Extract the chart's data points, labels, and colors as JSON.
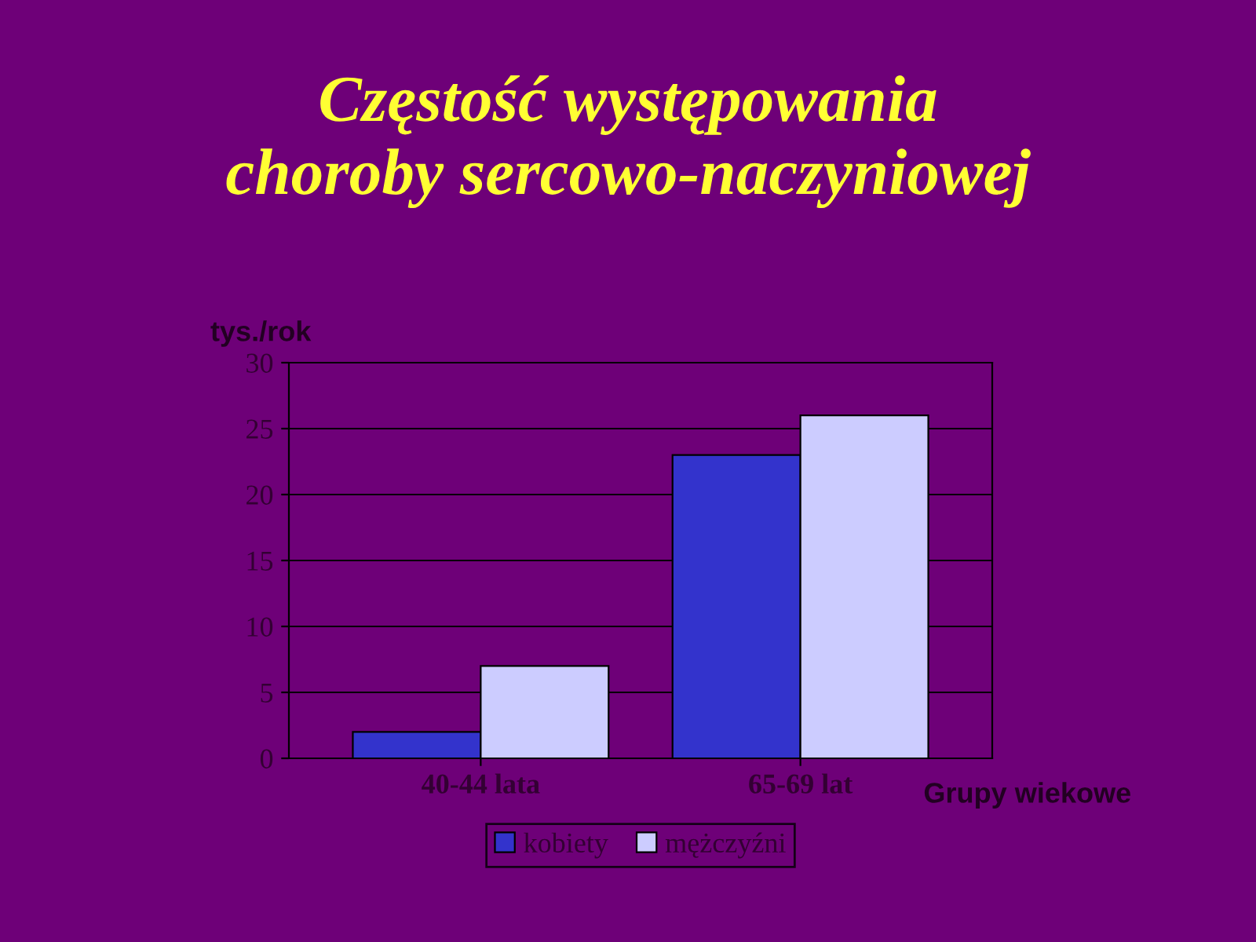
{
  "chart_data": {
    "type": "bar",
    "title": "Częstość występowania\nchoroby sercowo-naczyniowej",
    "ylabel": "tys./rok",
    "xlabel": "Grupy wiekowe",
    "categories": [
      "40-44 lata",
      "65-69 lat"
    ],
    "series": [
      {
        "name": "kobiety",
        "color": "#3333cc",
        "values": [
          2,
          23
        ]
      },
      {
        "name": "mężczyźni",
        "color": "#ccccff",
        "values": [
          7,
          26
        ]
      }
    ],
    "ylim": [
      0,
      30
    ],
    "yticks": [
      0,
      5,
      10,
      15,
      20,
      25,
      30
    ],
    "grid": "y",
    "legend": "bottom"
  }
}
